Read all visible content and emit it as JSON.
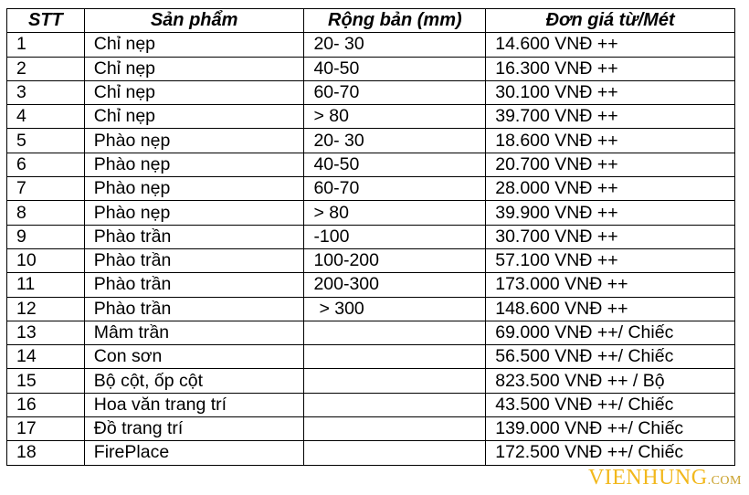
{
  "headers": [
    "STT",
    "Sản phẩm",
    "Rộng bản (mm)",
    "Đơn giá từ/Mét"
  ],
  "rows": [
    [
      "1",
      "Chỉ nẹp",
      "20- 30",
      "14.600 VNĐ ++"
    ],
    [
      "2",
      "Chỉ nẹp",
      "40-50",
      "16.300 VNĐ ++"
    ],
    [
      "3",
      "Chỉ nẹp",
      "60-70",
      "30.100 VNĐ ++"
    ],
    [
      "4",
      "Chỉ nẹp",
      "> 80",
      "39.700 VNĐ ++"
    ],
    [
      "5",
      "Phào nẹp",
      "20- 30",
      "18.600 VNĐ ++"
    ],
    [
      "6",
      "Phào nẹp",
      "40-50",
      "20.700 VNĐ ++"
    ],
    [
      "7",
      "Phào nẹp",
      "60-70",
      "28.000 VNĐ ++"
    ],
    [
      "8",
      "Phào nẹp",
      "> 80",
      "39.900 VNĐ ++"
    ],
    [
      "9",
      "Phào trần",
      "-100",
      "30.700 VNĐ ++"
    ],
    [
      "10",
      "Phào trần",
      "100-200",
      "57.100 VNĐ ++"
    ],
    [
      "11",
      "Phào trần",
      "200-300",
      "173.000 VNĐ ++"
    ],
    [
      "12",
      "Phào trần",
      " > 300",
      "148.600 VNĐ ++"
    ],
    [
      "13",
      "Mâm trần",
      "",
      "69.000 VNĐ ++/ Chiếc"
    ],
    [
      "14",
      "Con sơn",
      "",
      "56.500 VNĐ ++/ Chiếc"
    ],
    [
      "15",
      "Bộ cột, ốp cột",
      "",
      "823.500 VNĐ ++ / Bộ"
    ],
    [
      "16",
      "Hoa văn trang trí",
      "",
      "43.500 VNĐ ++/ Chiếc"
    ],
    [
      "17",
      "Đồ trang trí",
      "",
      "139.000 VNĐ ++/ Chiếc"
    ],
    [
      "18",
      "FirePlace",
      "",
      "172.500 VNĐ ++/ Chiếc"
    ]
  ],
  "watermark": {
    "main": "VIENHUNG",
    "suffix": ".COM",
    "color": "#f2b81c"
  }
}
